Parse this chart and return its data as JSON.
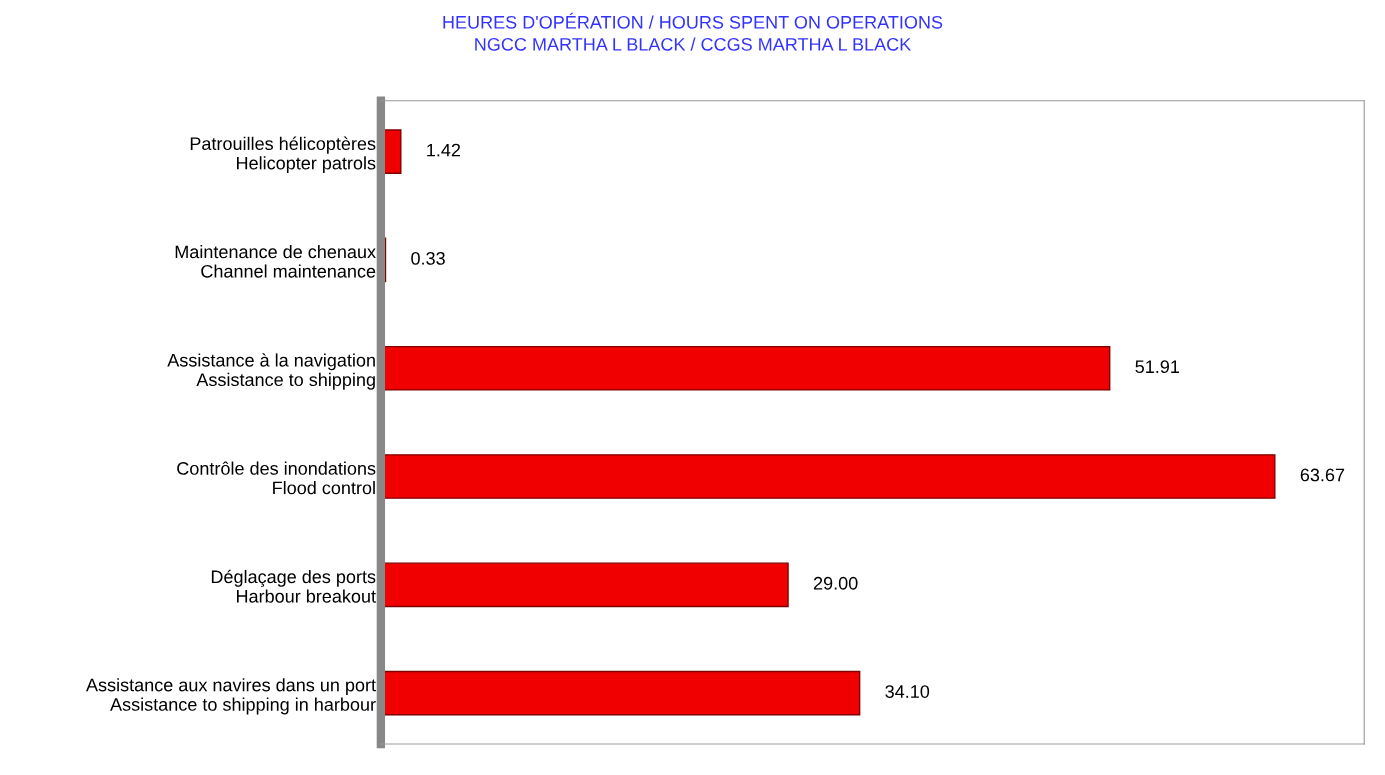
{
  "chart_data": {
    "type": "bar",
    "orientation": "horizontal",
    "title": "HEURES D'OPÉRATION / HOURS SPENT ON OPERATIONS\nNGCC MARTHA L BLACK / CCGS MARTHA L BLACK",
    "categories": [
      "Patrouilles hélicoptères\nHelicopter patrols",
      "Maintenance de chenaux\nChannel maintenance",
      "Assistance à la navigation\nAssistance to shipping",
      "Contrôle des inondations\nFlood control",
      "Déglaçage des ports\nHarbour breakout",
      "Assistance aux navires dans un port\nAssistance to shipping in harbour"
    ],
    "values": [
      1.42,
      0.33,
      51.91,
      63.67,
      29.0,
      34.1
    ],
    "value_labels": [
      "1.42",
      "0.33",
      "51.91",
      "63.67",
      "29.00",
      "34.10"
    ],
    "color": "#f00000",
    "tick_labels": "y",
    "grid": false,
    "legend": false
  }
}
